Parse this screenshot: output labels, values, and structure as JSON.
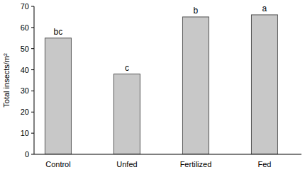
{
  "chart_data": {
    "type": "bar",
    "y_label": "Total insects/m²",
    "categories": [
      "Control",
      "Unfed",
      "Fertilized",
      "Fed"
    ],
    "values": [
      55,
      38,
      65,
      66
    ],
    "annotations": [
      "bc",
      "c",
      "b",
      "a"
    ],
    "color": "#c8c8c8",
    "ylim": [
      0,
      70
    ],
    "yticks": [
      0,
      10,
      20,
      30,
      40,
      50,
      60,
      70
    ],
    "grid": false
  }
}
